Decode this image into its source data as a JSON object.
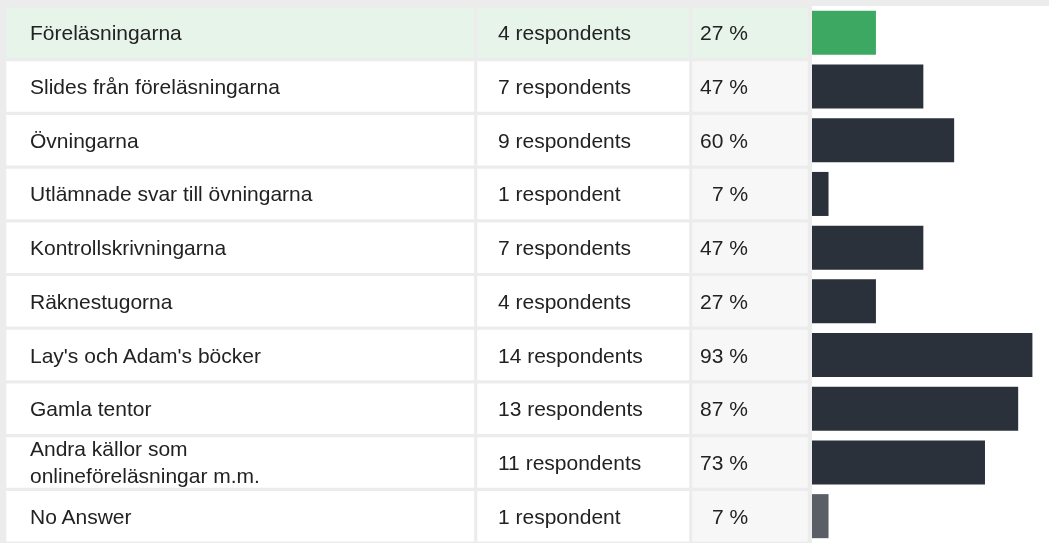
{
  "chart_data": {
    "type": "bar",
    "orientation": "horizontal",
    "relative": false,
    "categories": [
      "Föreläsningarna",
      "Slides från föreläsningarna",
      "Övningarna",
      "Utlämnade svar till övningarna",
      "Kontrollskrivningarna",
      "Räknestugorna",
      "Lay's och Adam's böcker",
      "Gamla tentor",
      "Andra källor som onlineföreläsningar m.m.",
      "No Answer"
    ],
    "values": [
      27,
      47,
      60,
      7,
      47,
      27,
      93,
      87,
      73,
      7
    ],
    "colors": [
      "#3ca862",
      "#2b313a",
      "#2b313a",
      "#2b313a",
      "#2b313a",
      "#2b313a",
      "#2b313a",
      "#2b313a",
      "#2b313a",
      "#5a5f66"
    ],
    "xlim": [
      0,
      100
    ],
    "value_labels": [
      "27 %",
      "47 %",
      "60 %",
      "7 %",
      "47 %",
      "27 %",
      "93 %",
      "87 %",
      "73 %",
      "7 %"
    ],
    "tick_labels": false,
    "annotations": [
      "4 respondents",
      "7 respondents",
      "9 respondents",
      "1 respondent",
      "7 respondents",
      "4 respondents",
      "14 respondents",
      "13 respondents",
      "11 respondents",
      "1 respondent"
    ]
  }
}
